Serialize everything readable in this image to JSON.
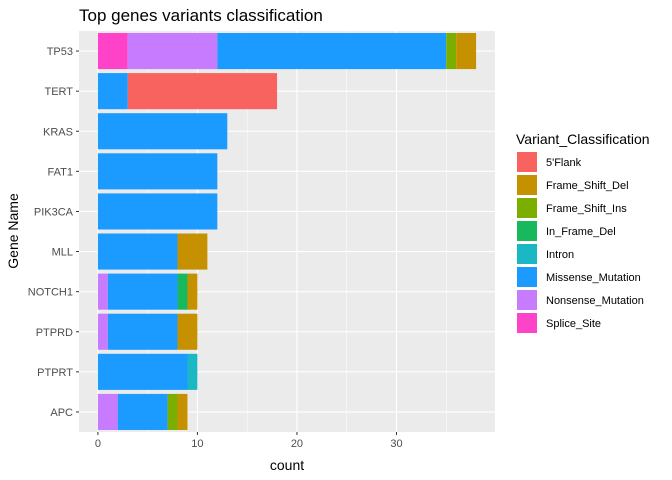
{
  "chart_data": {
    "type": "bar",
    "orientation": "horizontal",
    "stacked": true,
    "title": "Top genes variants classification",
    "xlabel": "count",
    "ylabel": "Gene Name",
    "xlim": [
      -1.9,
      39.9
    ],
    "xticks": [
      0,
      10,
      20,
      30
    ],
    "grid": true,
    "legend_title": "Variant_Classification",
    "legend_position": "right",
    "categories": [
      "TP53",
      "TERT",
      "KRAS",
      "FAT1",
      "PIK3CA",
      "MLL",
      "NOTCH1",
      "PTPRD",
      "PTPRT",
      "APC"
    ],
    "series": [
      {
        "name": "Splice_Site",
        "color": "#FF43C8",
        "values": [
          3,
          0,
          0,
          0,
          0,
          0,
          0,
          0,
          0,
          0
        ]
      },
      {
        "name": "Nonsense_Mutation",
        "color": "#C77CFF",
        "values": [
          9,
          0,
          0,
          0,
          0,
          0,
          1,
          1,
          0,
          2
        ]
      },
      {
        "name": "Missense_Mutation",
        "color": "#1B9AFF",
        "values": [
          23,
          3,
          13,
          12,
          12,
          8,
          7,
          7,
          9,
          5
        ]
      },
      {
        "name": "Intron",
        "color": "#1CB7C4",
        "values": [
          0,
          0,
          0,
          0,
          0,
          0,
          0,
          0,
          1,
          0
        ]
      },
      {
        "name": "In_Frame_Del",
        "color": "#19B85C",
        "values": [
          0,
          0,
          0,
          0,
          0,
          0,
          1,
          0,
          0,
          0
        ]
      },
      {
        "name": "Frame_Shift_Ins",
        "color": "#7CAE00",
        "values": [
          1,
          0,
          0,
          0,
          0,
          0,
          0,
          0,
          0,
          1
        ]
      },
      {
        "name": "Frame_Shift_Del",
        "color": "#C69100",
        "values": [
          2,
          0,
          0,
          0,
          0,
          3,
          1,
          2,
          0,
          1
        ]
      },
      {
        "name": "5'Flank",
        "color": "#F8635F",
        "values": [
          0,
          15,
          0,
          0,
          0,
          0,
          0,
          0,
          0,
          0
        ]
      }
    ],
    "legend_order": [
      "5'Flank",
      "Frame_Shift_Del",
      "Frame_Shift_Ins",
      "In_Frame_Del",
      "Intron",
      "Missense_Mutation",
      "Nonsense_Mutation",
      "Splice_Site"
    ]
  }
}
